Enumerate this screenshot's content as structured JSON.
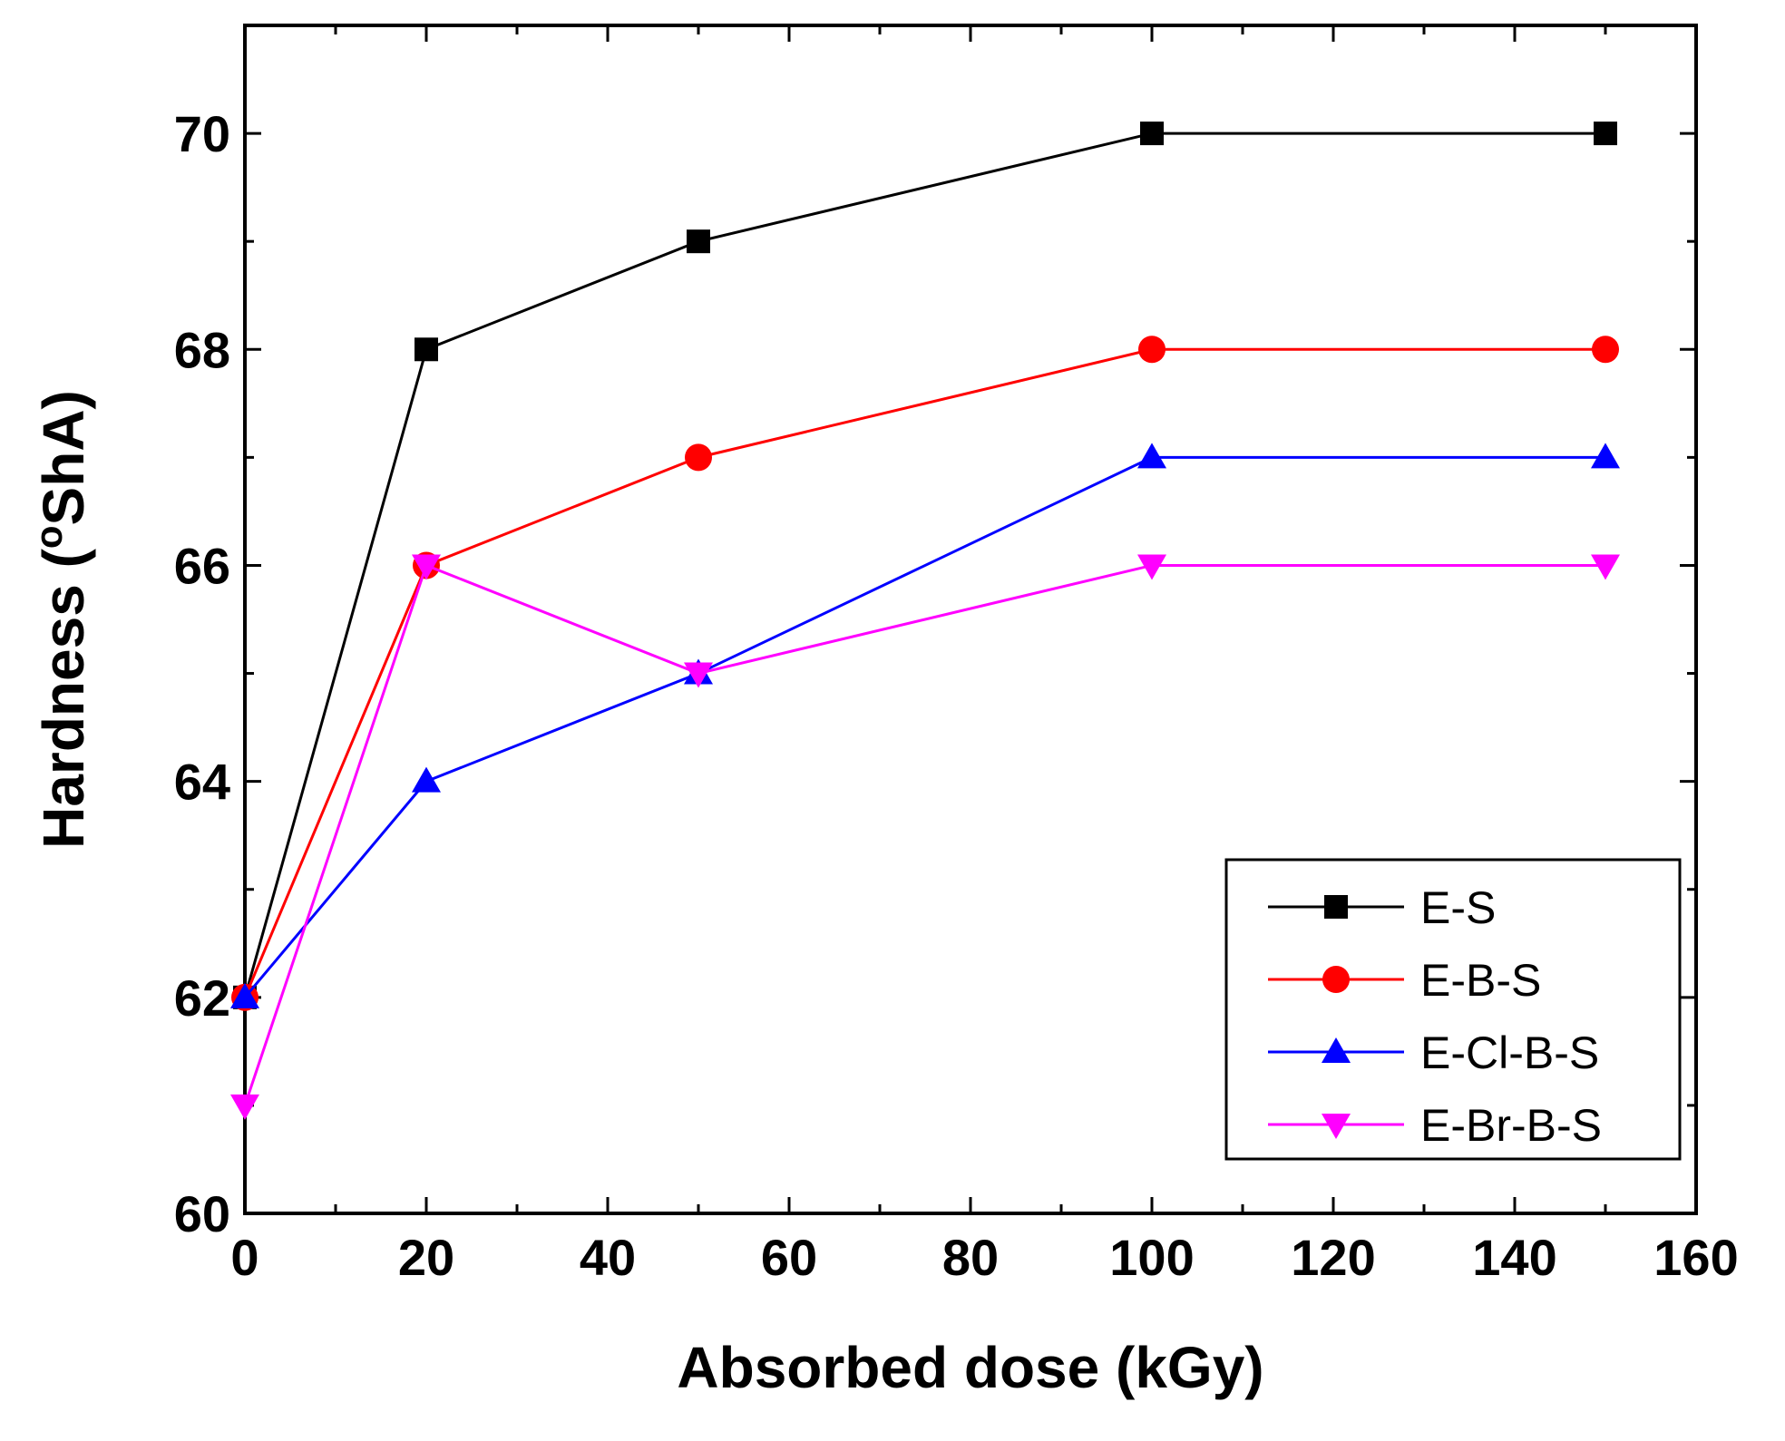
{
  "chart_data": {
    "type": "line",
    "title": "",
    "xlabel": "Absorbed dose (kGy)",
    "ylabel_main": "Hardness (",
    "ylabel_sup": "o",
    "ylabel_tail": "ShA)",
    "xlim": [
      0,
      160
    ],
    "ylim": [
      60,
      71
    ],
    "x_major_ticks": [
      0,
      20,
      40,
      60,
      80,
      100,
      120,
      140,
      160
    ],
    "x_tick_labels": [
      "0",
      "20",
      "40",
      "60",
      "80",
      "100",
      "120",
      "140",
      "160"
    ],
    "y_major_ticks": [
      60,
      62,
      64,
      66,
      68,
      70
    ],
    "y_tick_labels": [
      "60",
      "62",
      "64",
      "66",
      "68",
      "70"
    ],
    "grid": false,
    "legend_position": "bottom-right",
    "x": [
      0,
      20,
      50,
      100,
      150
    ],
    "series": [
      {
        "name": "E-S",
        "marker": "square",
        "color": "#000000",
        "values": [
          62,
          68,
          69,
          70,
          70
        ]
      },
      {
        "name": "E-B-S",
        "marker": "circle",
        "color": "#ff0000",
        "values": [
          62,
          66,
          67,
          68,
          68
        ]
      },
      {
        "name": "E-Cl-B-S",
        "marker": "triangle-up",
        "color": "#0000ff",
        "values": [
          62,
          64,
          65,
          67,
          67
        ]
      },
      {
        "name": "E-Br-B-S",
        "marker": "triangle-down",
        "color": "#ff00ff",
        "values": [
          61,
          66,
          65,
          66,
          66
        ]
      }
    ]
  }
}
